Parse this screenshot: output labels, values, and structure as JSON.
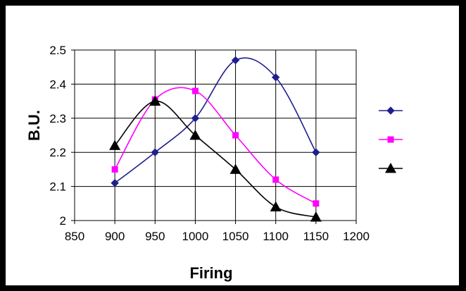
{
  "chart_data": {
    "type": "line",
    "title": "",
    "xlabel": "Firing",
    "ylabel": "B.U.",
    "xlim": [
      850,
      1200
    ],
    "ylim": [
      2.0,
      2.5
    ],
    "xticks": [
      850,
      900,
      950,
      1000,
      1050,
      1100,
      1150,
      1200
    ],
    "yticks": [
      2.0,
      2.1,
      2.2,
      2.3,
      2.4,
      2.5
    ],
    "xtick_labels": [
      "850",
      "900",
      "950",
      "1000",
      "1050",
      "1100",
      "1150",
      "1200"
    ],
    "ytick_labels": [
      "2",
      "2.1",
      "2.2",
      "2.3",
      "2.4",
      "2.5"
    ],
    "grid": true,
    "legend_position": "right",
    "x": [
      900,
      950,
      1000,
      1050,
      1100,
      1150
    ],
    "series": [
      {
        "values": [
          2.11,
          2.2,
          2.3,
          2.47,
          2.42,
          2.2
        ],
        "color": "#1f1f8f",
        "marker": "diamond"
      },
      {
        "values": [
          2.15,
          2.355,
          2.38,
          2.25,
          2.12,
          2.05
        ],
        "color": "#ff00ff",
        "marker": "square"
      },
      {
        "values": [
          2.22,
          2.35,
          2.25,
          2.15,
          2.04,
          2.01
        ],
        "color": "#000000",
        "marker": "triangle"
      }
    ]
  }
}
